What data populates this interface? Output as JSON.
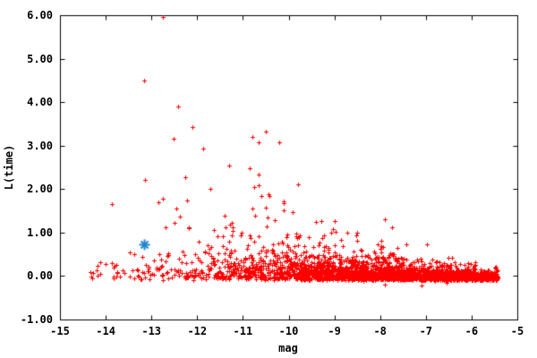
{
  "chart_data": {
    "type": "scatter",
    "title": "",
    "xlabel": "mag",
    "ylabel": "L(time)",
    "xlim": [
      -15,
      -5
    ],
    "ylim": [
      -1,
      6
    ],
    "grid": false,
    "legend": "none",
    "x_ticks": [
      {
        "v": -15,
        "label": "-15"
      },
      {
        "v": -14,
        "label": "-14"
      },
      {
        "v": -13,
        "label": "-13"
      },
      {
        "v": -12,
        "label": "-12"
      },
      {
        "v": -11,
        "label": "-11"
      },
      {
        "v": -10,
        "label": "-10"
      },
      {
        "v": -9,
        "label": "-9"
      },
      {
        "v": -8,
        "label": "-8"
      },
      {
        "v": -7,
        "label": "-7"
      },
      {
        "v": -6,
        "label": "-6"
      },
      {
        "v": -5,
        "label": "-5"
      }
    ],
    "y_ticks": [
      {
        "v": -1,
        "label": "-1.00"
      },
      {
        "v": 0,
        "label": "0.00"
      },
      {
        "v": 1,
        "label": "1.00"
      },
      {
        "v": 2,
        "label": "2.00"
      },
      {
        "v": 3,
        "label": "3.00"
      },
      {
        "v": 4,
        "label": "4.00"
      },
      {
        "v": 5,
        "label": "5.00"
      },
      {
        "v": 6,
        "label": "6.00"
      }
    ],
    "axis_color": "#000000",
    "series": [
      {
        "name": "stars",
        "marker": "plus",
        "color": "#ff0000",
        "seed": 1337,
        "l_floor": -0.07,
        "cloud_bins": [
          {
            "mag_min": -14.4,
            "mag_max": -13.9,
            "n": 8,
            "l_scale": 0.15,
            "l_max": 1.0
          },
          {
            "mag_min": -13.9,
            "mag_max": -13.4,
            "n": 14,
            "l_scale": 0.2,
            "l_max": 1.3
          },
          {
            "mag_min": -13.4,
            "mag_max": -12.9,
            "n": 22,
            "l_scale": 0.28,
            "l_max": 1.5
          },
          {
            "mag_min": -12.9,
            "mag_max": -12.4,
            "n": 30,
            "l_scale": 0.33,
            "l_max": 1.8
          },
          {
            "mag_min": -12.4,
            "mag_max": -11.9,
            "n": 45,
            "l_scale": 0.36,
            "l_max": 2.0
          },
          {
            "mag_min": -11.9,
            "mag_max": -11.4,
            "n": 60,
            "l_scale": 0.38,
            "l_max": 2.2
          },
          {
            "mag_min": -11.4,
            "mag_max": -10.9,
            "n": 85,
            "l_scale": 0.4,
            "l_max": 2.4
          },
          {
            "mag_min": -10.9,
            "mag_max": -10.4,
            "n": 110,
            "l_scale": 0.38,
            "l_max": 2.3
          },
          {
            "mag_min": -10.4,
            "mag_max": -9.9,
            "n": 140,
            "l_scale": 0.33,
            "l_max": 2.0
          },
          {
            "mag_min": -9.9,
            "mag_max": -9.4,
            "n": 170,
            "l_scale": 0.28,
            "l_max": 1.6
          },
          {
            "mag_min": -9.4,
            "mag_max": -8.9,
            "n": 200,
            "l_scale": 0.24,
            "l_max": 1.35
          },
          {
            "mag_min": -8.9,
            "mag_max": -8.4,
            "n": 240,
            "l_scale": 0.2,
            "l_max": 1.1
          },
          {
            "mag_min": -8.4,
            "mag_max": -7.9,
            "n": 280,
            "l_scale": 0.17,
            "l_max": 0.9
          },
          {
            "mag_min": -7.9,
            "mag_max": -7.4,
            "n": 300,
            "l_scale": 0.14,
            "l_max": 0.75
          },
          {
            "mag_min": -7.4,
            "mag_max": -6.9,
            "n": 320,
            "l_scale": 0.11,
            "l_max": 0.6
          },
          {
            "mag_min": -6.9,
            "mag_max": -6.4,
            "n": 330,
            "l_scale": 0.09,
            "l_max": 0.45
          },
          {
            "mag_min": -6.4,
            "mag_max": -5.9,
            "n": 320,
            "l_scale": 0.07,
            "l_max": 0.33
          },
          {
            "mag_min": -5.9,
            "mag_max": -5.42,
            "n": 260,
            "l_scale": 0.055,
            "l_max": 0.24
          }
        ],
        "outlier_points": [
          [
            -12.75,
            5.95
          ],
          [
            -13.16,
            4.49
          ],
          [
            -12.42,
            3.89
          ],
          [
            -12.1,
            3.42
          ],
          [
            -12.52,
            3.16
          ],
          [
            -10.8,
            3.2
          ],
          [
            -10.5,
            3.32
          ],
          [
            -10.65,
            3.07
          ],
          [
            -10.2,
            3.07
          ],
          [
            -11.87,
            2.93
          ],
          [
            -11.3,
            2.54
          ],
          [
            -10.85,
            2.48
          ],
          [
            -13.14,
            2.21
          ],
          [
            -12.26,
            2.27
          ],
          [
            -10.65,
            2.33
          ],
          [
            -10.75,
            2.04
          ],
          [
            -11.72,
            2.0
          ],
          [
            -10.6,
            1.84
          ],
          [
            -10.45,
            1.88
          ],
          [
            -13.86,
            1.65
          ],
          [
            -12.85,
            1.7
          ],
          [
            -12.22,
            1.74
          ],
          [
            -10.8,
            1.55
          ],
          [
            -10.1,
            1.68
          ],
          [
            -9.8,
            2.1
          ],
          [
            -9.92,
            1.47
          ],
          [
            -9.4,
            1.24
          ],
          [
            -7.9,
            1.3
          ],
          [
            -7.74,
            1.13
          ],
          [
            -9.03,
            1.07
          ],
          [
            -9.27,
            0.88
          ],
          [
            -7.43,
            0.72
          ],
          [
            -6.97,
            0.72
          ],
          [
            -7.1,
            -0.22
          ],
          [
            -7.9,
            -0.2
          ],
          [
            -6.55,
            -0.16
          ],
          [
            -14.28,
            0.08
          ],
          [
            -14.18,
            0.23
          ],
          [
            -14.0,
            0.27
          ],
          [
            -13.86,
            0.29
          ]
        ]
      },
      {
        "name": "highlighted-star",
        "marker": "asterisk",
        "color": "#1f86cf",
        "points": [
          [
            -13.15,
            0.72
          ]
        ]
      }
    ]
  }
}
